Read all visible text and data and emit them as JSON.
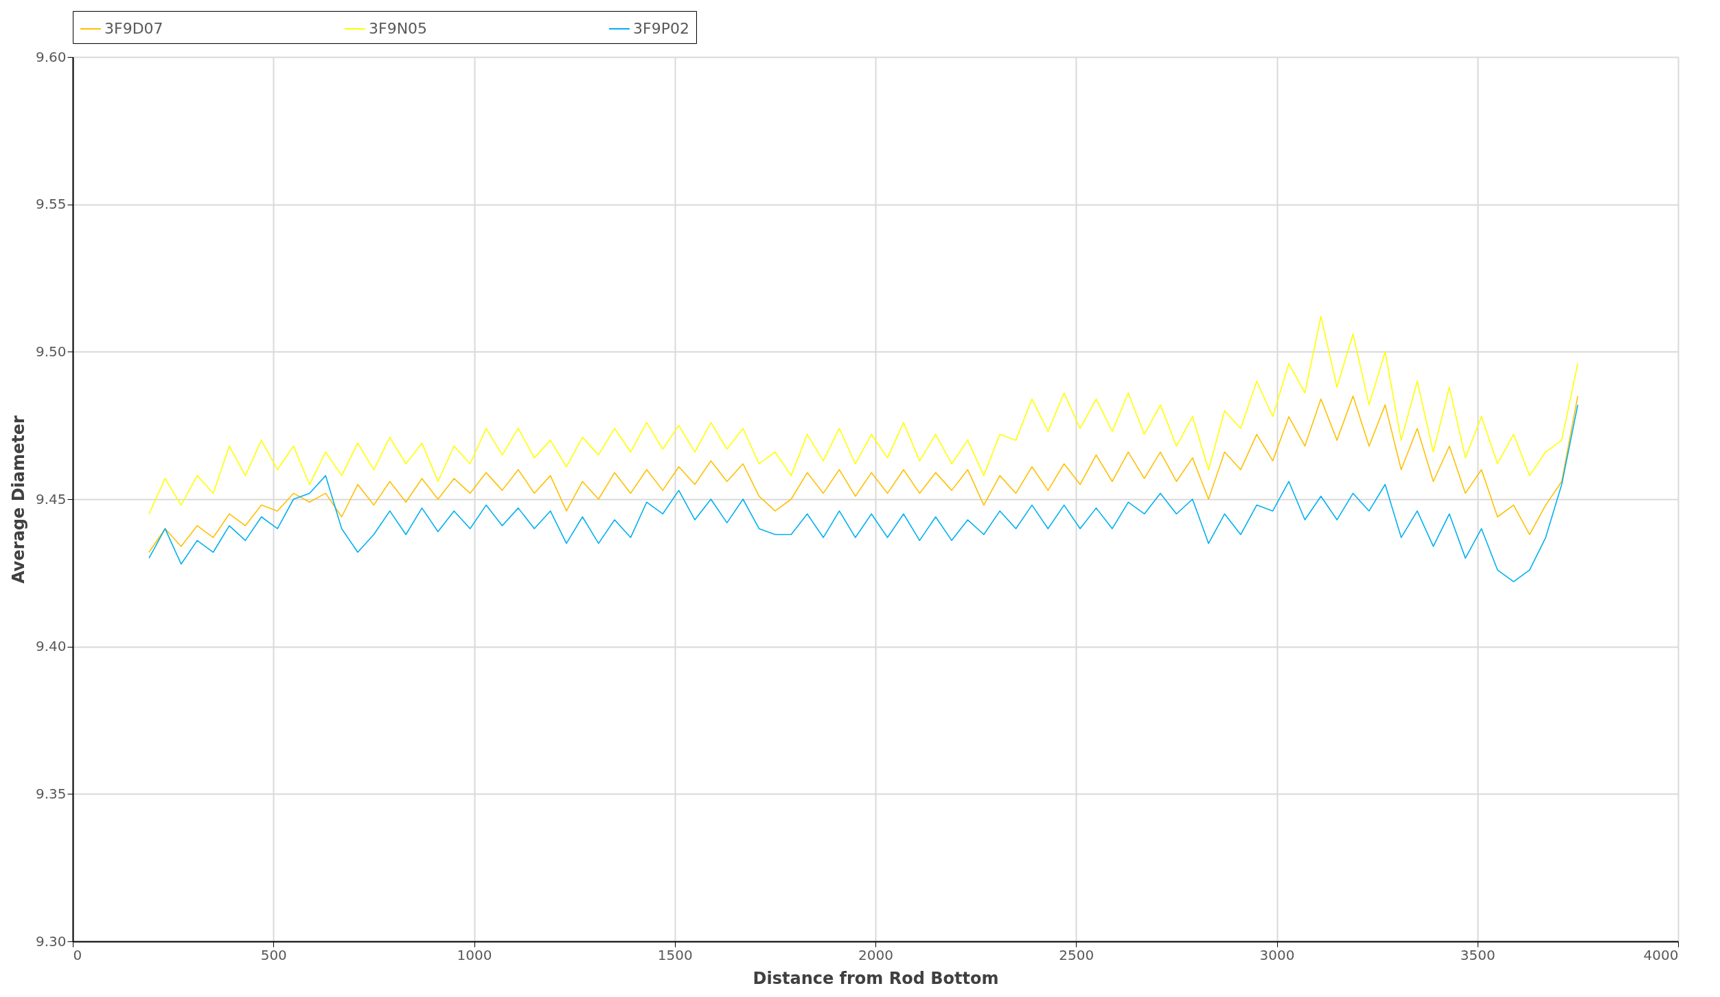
{
  "chart_data": {
    "type": "line",
    "xlabel": "Distance from Rod Bottom",
    "ylabel": "Average Diameter",
    "x": [
      190,
      230,
      270,
      310,
      350,
      390,
      430,
      470,
      510,
      550,
      590,
      630,
      670,
      710,
      750,
      790,
      830,
      870,
      910,
      950,
      990,
      1030,
      1070,
      1110,
      1150,
      1190,
      1230,
      1270,
      1310,
      1350,
      1390,
      1430,
      1470,
      1510,
      1550,
      1590,
      1630,
      1670,
      1710,
      1750,
      1790,
      1830,
      1870,
      1910,
      1950,
      1990,
      2030,
      2070,
      2110,
      2150,
      2190,
      2230,
      2270,
      2310,
      2350,
      2390,
      2430,
      2470,
      2510,
      2550,
      2590,
      2630,
      2670,
      2710,
      2750,
      2790,
      2830,
      2870,
      2910,
      2950,
      2990,
      3030,
      3070,
      3110,
      3150,
      3190,
      3230,
      3270,
      3310,
      3350,
      3390,
      3430,
      3470,
      3510,
      3550,
      3590,
      3630,
      3670,
      3710,
      3750
    ],
    "series": [
      {
        "name": "3F9D07",
        "color": "#ffc000",
        "values": [
          9.432,
          9.44,
          9.434,
          9.441,
          9.437,
          9.445,
          9.441,
          9.448,
          9.446,
          9.452,
          9.449,
          9.452,
          9.444,
          9.455,
          9.448,
          9.456,
          9.449,
          9.457,
          9.45,
          9.457,
          9.452,
          9.459,
          9.453,
          9.46,
          9.452,
          9.458,
          9.446,
          9.456,
          9.45,
          9.459,
          9.452,
          9.46,
          9.453,
          9.461,
          9.455,
          9.463,
          9.456,
          9.462,
          9.451,
          9.446,
          9.45,
          9.459,
          9.452,
          9.46,
          9.451,
          9.459,
          9.452,
          9.46,
          9.452,
          9.459,
          9.453,
          9.46,
          9.448,
          9.458,
          9.452,
          9.461,
          9.453,
          9.462,
          9.455,
          9.465,
          9.456,
          9.466,
          9.457,
          9.466,
          9.456,
          9.464,
          9.45,
          9.466,
          9.46,
          9.472,
          9.463,
          9.478,
          9.468,
          9.484,
          9.47,
          9.485,
          9.468,
          9.482,
          9.46,
          9.474,
          9.456,
          9.468,
          9.452,
          9.46,
          9.444,
          9.448,
          9.438,
          9.448,
          9.456,
          9.485
        ]
      },
      {
        "name": "3F9N05",
        "color": "#ffff00",
        "values": [
          9.445,
          9.457,
          9.448,
          9.458,
          9.452,
          9.468,
          9.458,
          9.47,
          9.46,
          9.468,
          9.455,
          9.466,
          9.458,
          9.469,
          9.46,
          9.471,
          9.462,
          9.469,
          9.456,
          9.468,
          9.462,
          9.474,
          9.465,
          9.474,
          9.464,
          9.47,
          9.461,
          9.471,
          9.465,
          9.474,
          9.466,
          9.476,
          9.467,
          9.475,
          9.466,
          9.476,
          9.467,
          9.474,
          9.462,
          9.466,
          9.458,
          9.472,
          9.463,
          9.474,
          9.462,
          9.472,
          9.464,
          9.476,
          9.463,
          9.472,
          9.462,
          9.47,
          9.458,
          9.472,
          9.47,
          9.484,
          9.473,
          9.486,
          9.474,
          9.484,
          9.473,
          9.486,
          9.472,
          9.482,
          9.468,
          9.478,
          9.46,
          9.48,
          9.474,
          9.49,
          9.478,
          9.496,
          9.486,
          9.512,
          9.488,
          9.506,
          9.482,
          9.5,
          9.47,
          9.49,
          9.466,
          9.488,
          9.464,
          9.478,
          9.462,
          9.472,
          9.458,
          9.466,
          9.47,
          9.496
        ]
      },
      {
        "name": "3F9P02",
        "color": "#00b0f0",
        "values": [
          9.43,
          9.44,
          9.428,
          9.436,
          9.432,
          9.441,
          9.436,
          9.444,
          9.44,
          9.45,
          9.452,
          9.458,
          9.44,
          9.432,
          9.438,
          9.446,
          9.438,
          9.447,
          9.439,
          9.446,
          9.44,
          9.448,
          9.441,
          9.447,
          9.44,
          9.446,
          9.435,
          9.444,
          9.435,
          9.443,
          9.437,
          9.449,
          9.445,
          9.453,
          9.443,
          9.45,
          9.442,
          9.45,
          9.44,
          9.438,
          9.438,
          9.445,
          9.437,
          9.446,
          9.437,
          9.445,
          9.437,
          9.445,
          9.436,
          9.444,
          9.436,
          9.443,
          9.438,
          9.446,
          9.44,
          9.448,
          9.44,
          9.448,
          9.44,
          9.447,
          9.44,
          9.449,
          9.445,
          9.452,
          9.445,
          9.45,
          9.435,
          9.445,
          9.438,
          9.448,
          9.446,
          9.456,
          9.443,
          9.451,
          9.443,
          9.452,
          9.446,
          9.455,
          9.437,
          9.446,
          9.434,
          9.445,
          9.43,
          9.44,
          9.426,
          9.422,
          9.426,
          9.437,
          9.455,
          9.482
        ]
      }
    ],
    "xlim": [
      0,
      4000
    ],
    "xticks": [
      0,
      500,
      1000,
      1500,
      2000,
      2500,
      3000,
      3500,
      4000
    ],
    "ylim": [
      9.3,
      9.6
    ],
    "yticks": [
      {
        "value": 9.3,
        "label": "9.30"
      },
      {
        "value": 9.35,
        "label": "9.35"
      },
      {
        "value": 9.4,
        "label": "9.40"
      },
      {
        "value": 9.45,
        "label": "9.45"
      },
      {
        "value": 9.5,
        "label": "9.50"
      },
      {
        "value": 9.55,
        "label": "9.55"
      },
      {
        "value": 9.6,
        "label": "9.60"
      }
    ],
    "grid": true,
    "legend": "top",
    "marker": "none",
    "line_style": "solid"
  }
}
